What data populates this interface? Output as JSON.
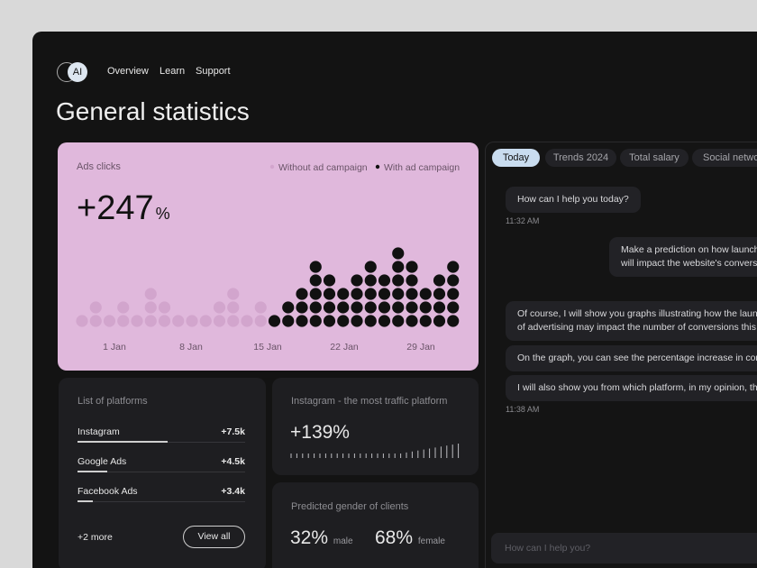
{
  "nav": {
    "logo": "AI",
    "links": [
      "Overview",
      "Learn",
      "Support"
    ]
  },
  "title": "General statistics",
  "ads_clicks": {
    "title": "Ads clicks",
    "value": "+247",
    "unit": "%",
    "series": [
      {
        "name": "Without ad campaign",
        "color": "#d2a5cd",
        "values": [
          1,
          2,
          1,
          2,
          1,
          3,
          2,
          1,
          1,
          1,
          2,
          3,
          1,
          2
        ]
      },
      {
        "name": "With ad campaign",
        "color": "#111111",
        "values": [
          1,
          2,
          3,
          5,
          4,
          3,
          4,
          5,
          4,
          6,
          5,
          3,
          4,
          5
        ]
      }
    ],
    "x_labels": [
      "1 Jan",
      "8 Jan",
      "15 Jan",
      "22 Jan",
      "29 Jan"
    ]
  },
  "platforms": {
    "title": "List of platforms",
    "items": [
      {
        "name": "Instagram",
        "value": "+7.5k"
      },
      {
        "name": "Google Ads",
        "value": "+4.5k"
      },
      {
        "name": "Facebook Ads",
        "value": "+3.4k"
      }
    ],
    "more": "+2 more",
    "button": "View all"
  },
  "instagram": {
    "title": "Instagram - the most traffic platform",
    "value": "+139%"
  },
  "gender": {
    "title": "Predicted gender of clients",
    "items": [
      {
        "value": "32%",
        "label": "male"
      },
      {
        "value": "68%",
        "label": "female"
      }
    ]
  },
  "chat": {
    "tabs": [
      "Today",
      "Trends 2024",
      "Total salary",
      "Social network"
    ],
    "messages": [
      [
        "How can I help you today?"
      ],
      [
        "Make a prediction on how launch",
        "will impact the website's convers"
      ],
      [
        "Of course, I will show you graphs illustrating how the launch",
        "of advertising may impact the number of conversions this"
      ],
      [
        "On the graph, you can see the percentage increase in conv"
      ],
      [
        "I will also show you from which platform, in my opinion, the"
      ]
    ],
    "times": [
      "11:32 AM",
      "11:38 AM"
    ],
    "input": "How can I help you?"
  }
}
